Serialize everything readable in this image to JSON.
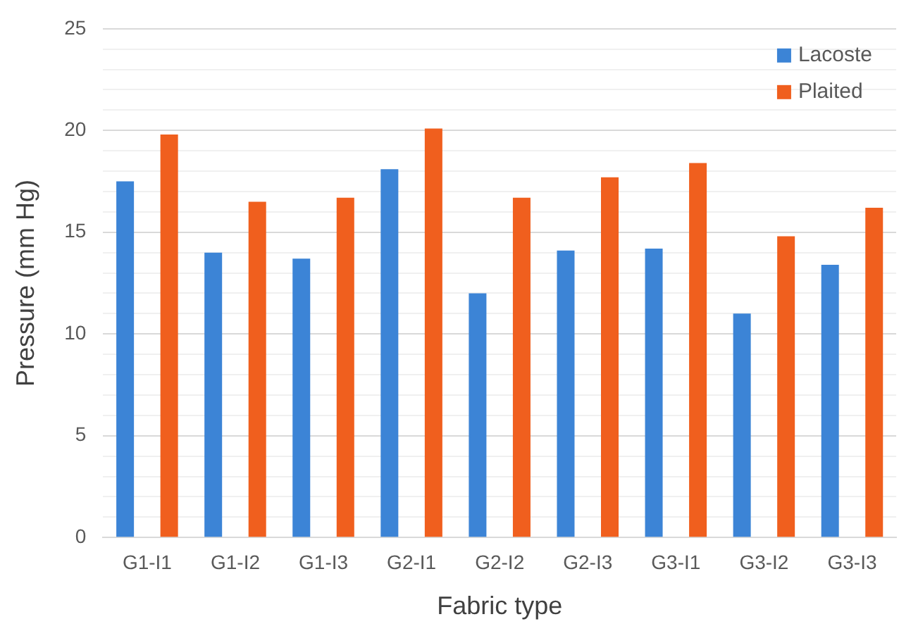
{
  "chart_data": {
    "type": "bar",
    "xlabel": "Fabric type",
    "ylabel": "Pressure (mm Hg)",
    "categories": [
      "G1-I1",
      "G1-I2",
      "G1-I3",
      "G2-I1",
      "G2-I2",
      "G2-I3",
      "G3-I1",
      "G3-I2",
      "G3-I3"
    ],
    "series": [
      {
        "name": "Lacoste",
        "color": "#3c84d6",
        "values": [
          17.5,
          14.0,
          13.7,
          18.1,
          12.0,
          14.1,
          14.2,
          11.0,
          13.4
        ]
      },
      {
        "name": "Plaited",
        "color": "#f05f1e",
        "values": [
          19.8,
          16.5,
          16.7,
          20.1,
          16.7,
          17.7,
          18.4,
          14.8,
          16.2
        ]
      }
    ],
    "ylim": [
      0,
      25
    ],
    "yticks": [
      0,
      {
        "value": 1,
        "label": null
      },
      {
        "value": 2,
        "label": null
      },
      {
        "value": 3,
        "label": null
      },
      {
        "value": 4,
        "label": null
      },
      5,
      {
        "value": 6,
        "label": null
      },
      {
        "value": 7,
        "label": null
      },
      {
        "value": 8,
        "label": null
      },
      {
        "value": 9,
        "label": null
      },
      10,
      {
        "value": 11,
        "label": null
      },
      {
        "value": 12,
        "label": null
      },
      {
        "value": 13,
        "label": null
      },
      {
        "value": 14,
        "label": null
      },
      15,
      {
        "value": 16,
        "label": null
      },
      {
        "value": 17,
        "label": null
      },
      {
        "value": 18,
        "label": null
      },
      {
        "value": 19,
        "label": null
      },
      20,
      {
        "value": 21,
        "label": null
      },
      {
        "value": 22,
        "label": null
      },
      {
        "value": 23,
        "label": null
      },
      {
        "value": 24,
        "label": null
      },
      25
    ],
    "grid": "y",
    "legend": "top right"
  }
}
